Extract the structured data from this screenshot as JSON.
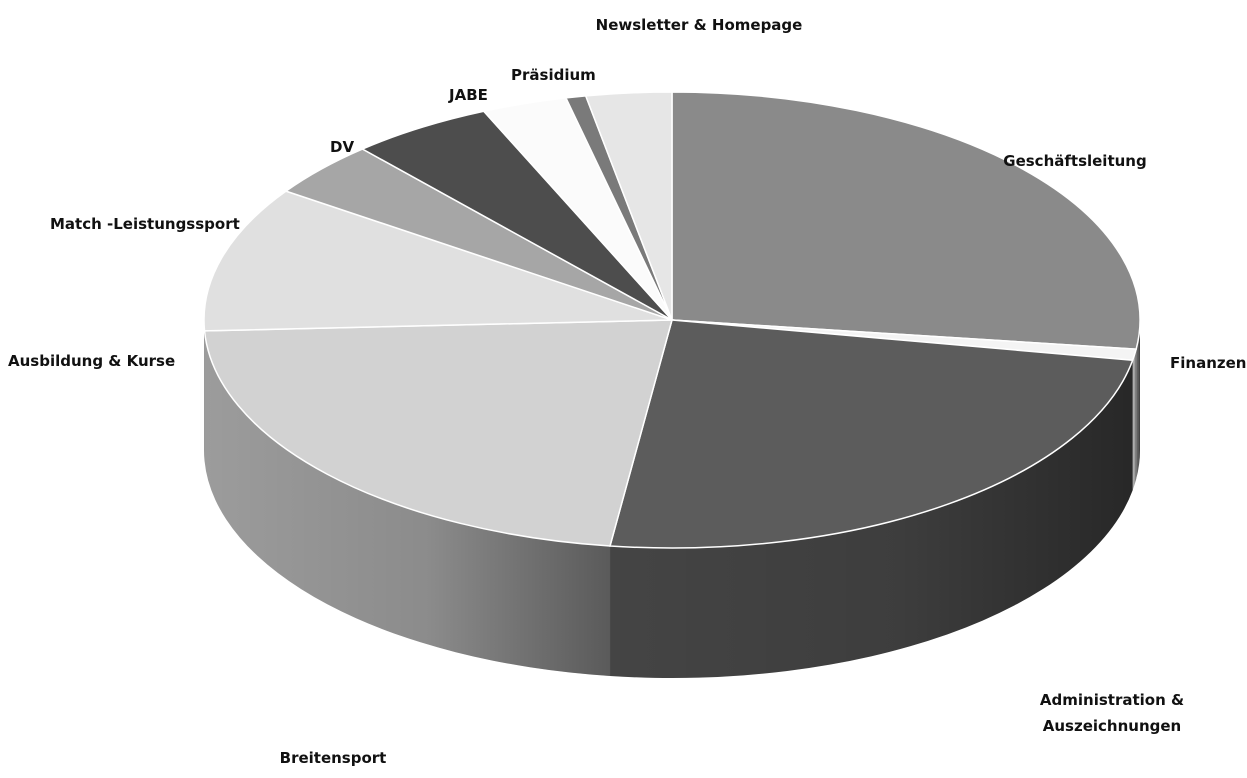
{
  "chart_data": {
    "type": "pie",
    "style": "3d",
    "legend": "none",
    "slices": [
      {
        "label": "Geschäftsleitung",
        "value": 27.5,
        "color": "#8a8a8a"
      },
      {
        "label": "Finanzen",
        "value": 0.8,
        "color": "#f4f4f4"
      },
      {
        "label": "Administration & Auszeichnungen",
        "value": 24.7,
        "color": "#5c5c5c"
      },
      {
        "label": "Breitensport",
        "value": 22.5,
        "color": "#d2d2d2"
      },
      {
        "label": "Ausbildung & Kurse",
        "value": 10.5,
        "color": "#e0e0e0"
      },
      {
        "label": "Match -Leistungssport",
        "value": 4.0,
        "color": "#a6a6a6"
      },
      {
        "label": "DV",
        "value": 5.0,
        "color": "#4d4d4d"
      },
      {
        "label": "JABE",
        "value": 3.0,
        "color": "#fbfbfb"
      },
      {
        "label": "Präsidium",
        "value": 0.7,
        "color": "#7a7a7a"
      },
      {
        "label": "Newsletter & Homepage",
        "value": 3.0,
        "color": "#e6e6e6"
      }
    ]
  }
}
